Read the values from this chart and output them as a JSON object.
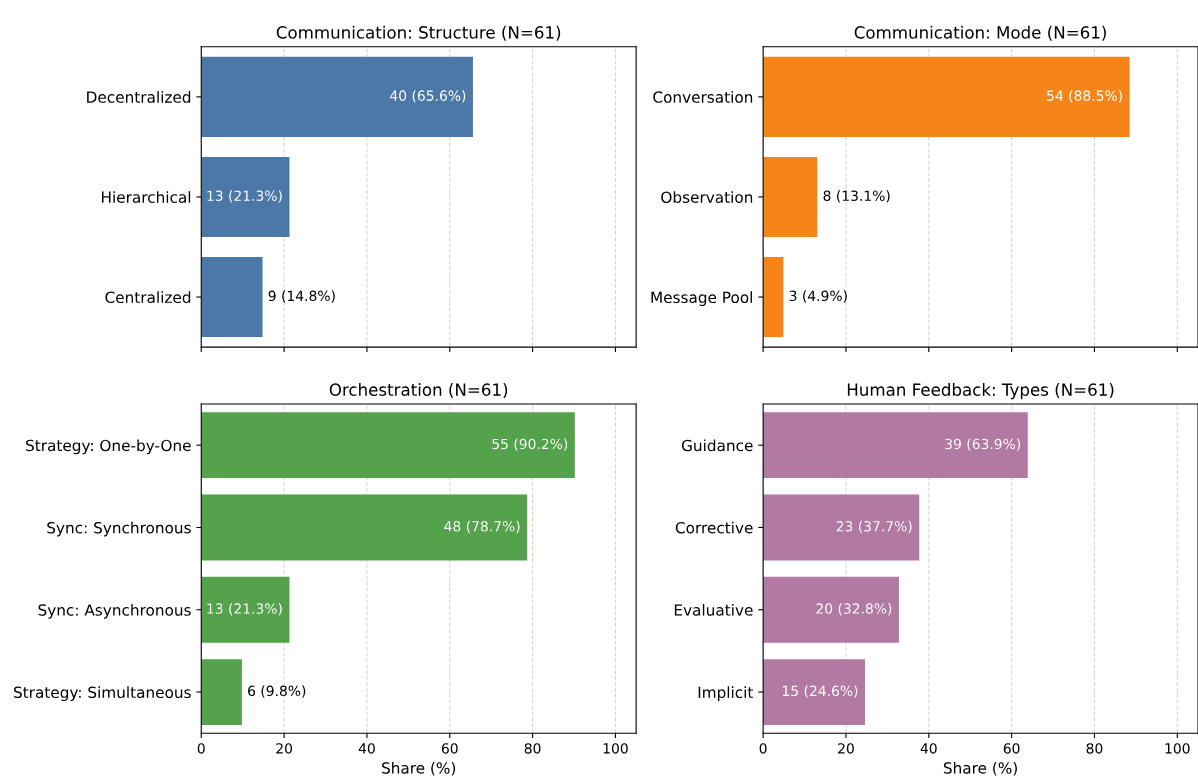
{
  "chart_data": [
    {
      "type": "bar",
      "orientation": "horizontal",
      "title": "Communication: Structure (N=61)",
      "categories": [
        "Decentralized",
        "Hierarchical",
        "Centralized"
      ],
      "values": [
        65.6,
        21.3,
        14.8
      ],
      "value_labels": [
        "40 (65.6%)",
        "13 (21.3%)",
        "9 (14.8%)"
      ],
      "color": "#4c78a8",
      "xlim": [
        0,
        105
      ],
      "xticks": [
        0,
        20,
        40,
        60,
        80,
        100
      ],
      "grid": "x",
      "tick_labels": "y"
    },
    {
      "type": "bar",
      "orientation": "horizontal",
      "title": "Communication: Mode (N=61)",
      "categories": [
        "Conversation",
        "Observation",
        "Message Pool"
      ],
      "values": [
        88.5,
        13.1,
        4.9
      ],
      "value_labels": [
        "54 (88.5%)",
        "8 (13.1%)",
        "3 (4.9%)"
      ],
      "color": "#f58518",
      "xlim": [
        0,
        105
      ],
      "xticks": [
        0,
        20,
        40,
        60,
        80,
        100
      ],
      "grid": "x",
      "tick_labels": "y"
    },
    {
      "type": "bar",
      "orientation": "horizontal",
      "title": "Orchestration (N=61)",
      "xlabel": "Share (%)",
      "categories": [
        "Strategy: One-by-One",
        "Sync: Synchronous",
        "Sync: Asynchronous",
        "Strategy: Simultaneous"
      ],
      "values": [
        90.2,
        78.7,
        21.3,
        9.8
      ],
      "value_labels": [
        "55 (90.2%)",
        "48 (78.7%)",
        "13 (21.3%)",
        "6 (9.8%)"
      ],
      "color": "#54a24b",
      "xlim": [
        0,
        105
      ],
      "xticks": [
        0,
        20,
        40,
        60,
        80,
        100
      ],
      "grid": "x"
    },
    {
      "type": "bar",
      "orientation": "horizontal",
      "title": "Human Feedback: Types (N=61)",
      "xlabel": "Share (%)",
      "categories": [
        "Guidance",
        "Corrective",
        "Evaluative",
        "Implicit"
      ],
      "values": [
        63.9,
        37.7,
        32.8,
        24.6
      ],
      "value_labels": [
        "39 (63.9%)",
        "23 (37.7%)",
        "20 (32.8%)",
        "15 (24.6%)"
      ],
      "color": "#b279a2",
      "xlim": [
        0,
        105
      ],
      "xticks": [
        0,
        20,
        40,
        60,
        80,
        100
      ],
      "grid": "x"
    }
  ]
}
